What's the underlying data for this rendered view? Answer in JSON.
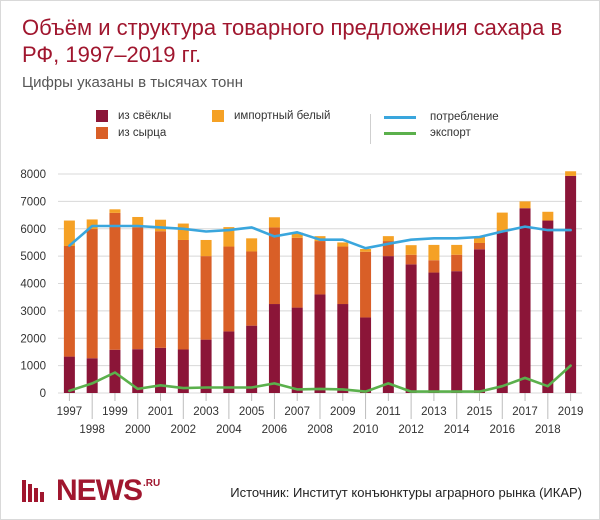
{
  "header": {
    "title": "Объём и структура товарного предложения сахара в РФ, 1997–2019 гг.",
    "subtitle": "Цифры указаны в тысячах тонн"
  },
  "legend": {
    "beet": "из свёклы",
    "raw": "из сырца",
    "import_white": "импортный белый",
    "consumption": "потребление",
    "export": "экспорт"
  },
  "footer": {
    "logo": "NEWS",
    "logo_suffix": ".RU",
    "source": "Источник: Институт конъюнктуры аграрного рынка (ИКАР)"
  },
  "colors": {
    "beet": "#8b1538",
    "raw": "#d95f27",
    "import_white": "#f5a125",
    "consumption": "#3aa6dd",
    "export": "#5bb04c",
    "title": "#a0162e"
  },
  "chart_data": {
    "type": "bar",
    "stacked": true,
    "x": [
      1997,
      1998,
      1999,
      2000,
      2001,
      2002,
      2003,
      2004,
      2005,
      2006,
      2007,
      2008,
      2009,
      2010,
      2011,
      2012,
      2013,
      2014,
      2015,
      2016,
      2017,
      2018,
      2019
    ],
    "xticks_top": [
      "1997",
      "1999",
      "2001",
      "2003",
      "2005",
      "2007",
      "2009",
      "2011",
      "2013",
      "2015",
      "2017",
      "2019"
    ],
    "xticks_bottom": [
      "1998",
      "2000",
      "2002",
      "2004",
      "2006",
      "2008",
      "2010",
      "2012",
      "2014",
      "2016",
      "2018"
    ],
    "yticks": [
      "0",
      "1000",
      "2000",
      "3000",
      "4000",
      "5000",
      "6000",
      "7000",
      "8000"
    ],
    "ylim": [
      0,
      8000
    ],
    "grid": true,
    "legend_position": "top",
    "series": [
      {
        "name": "из свёклы",
        "kind": "bar",
        "color": "#8b1538",
        "values": [
          1330,
          1270,
          1580,
          1600,
          1650,
          1590,
          1950,
          2250,
          2460,
          3250,
          3120,
          3600,
          3250,
          2760,
          5000,
          4700,
          4400,
          4450,
          5250,
          5880,
          6750,
          6300,
          7930
        ]
      },
      {
        "name": "из сырца",
        "kind": "bar",
        "color": "#d95f27",
        "values": [
          4040,
          4720,
          5000,
          4450,
          4260,
          4000,
          3050,
          3100,
          2710,
          2800,
          2550,
          1950,
          2100,
          2400,
          550,
          350,
          450,
          600,
          230,
          60,
          0,
          0,
          0
        ]
      },
      {
        "name": "импортный белый",
        "kind": "bar",
        "color": "#f5a125",
        "values": [
          930,
          350,
          130,
          380,
          420,
          600,
          590,
          710,
          480,
          370,
          190,
          180,
          150,
          100,
          180,
          350,
          560,
          360,
          230,
          650,
          250,
          320,
          170
        ]
      },
      {
        "name": "потребление",
        "kind": "line",
        "color": "#3aa6dd",
        "values": [
          5380,
          6100,
          6100,
          6100,
          6050,
          6000,
          5900,
          5950,
          6050,
          5720,
          5870,
          5600,
          5600,
          5290,
          5450,
          5600,
          5650,
          5650,
          5700,
          5900,
          6080,
          5950,
          5950
        ]
      },
      {
        "name": "экспорт",
        "kind": "line",
        "color": "#5bb04c",
        "values": [
          80,
          350,
          750,
          150,
          280,
          180,
          200,
          200,
          200,
          350,
          130,
          150,
          130,
          50,
          350,
          50,
          50,
          50,
          50,
          250,
          550,
          250,
          1000
        ]
      }
    ]
  }
}
